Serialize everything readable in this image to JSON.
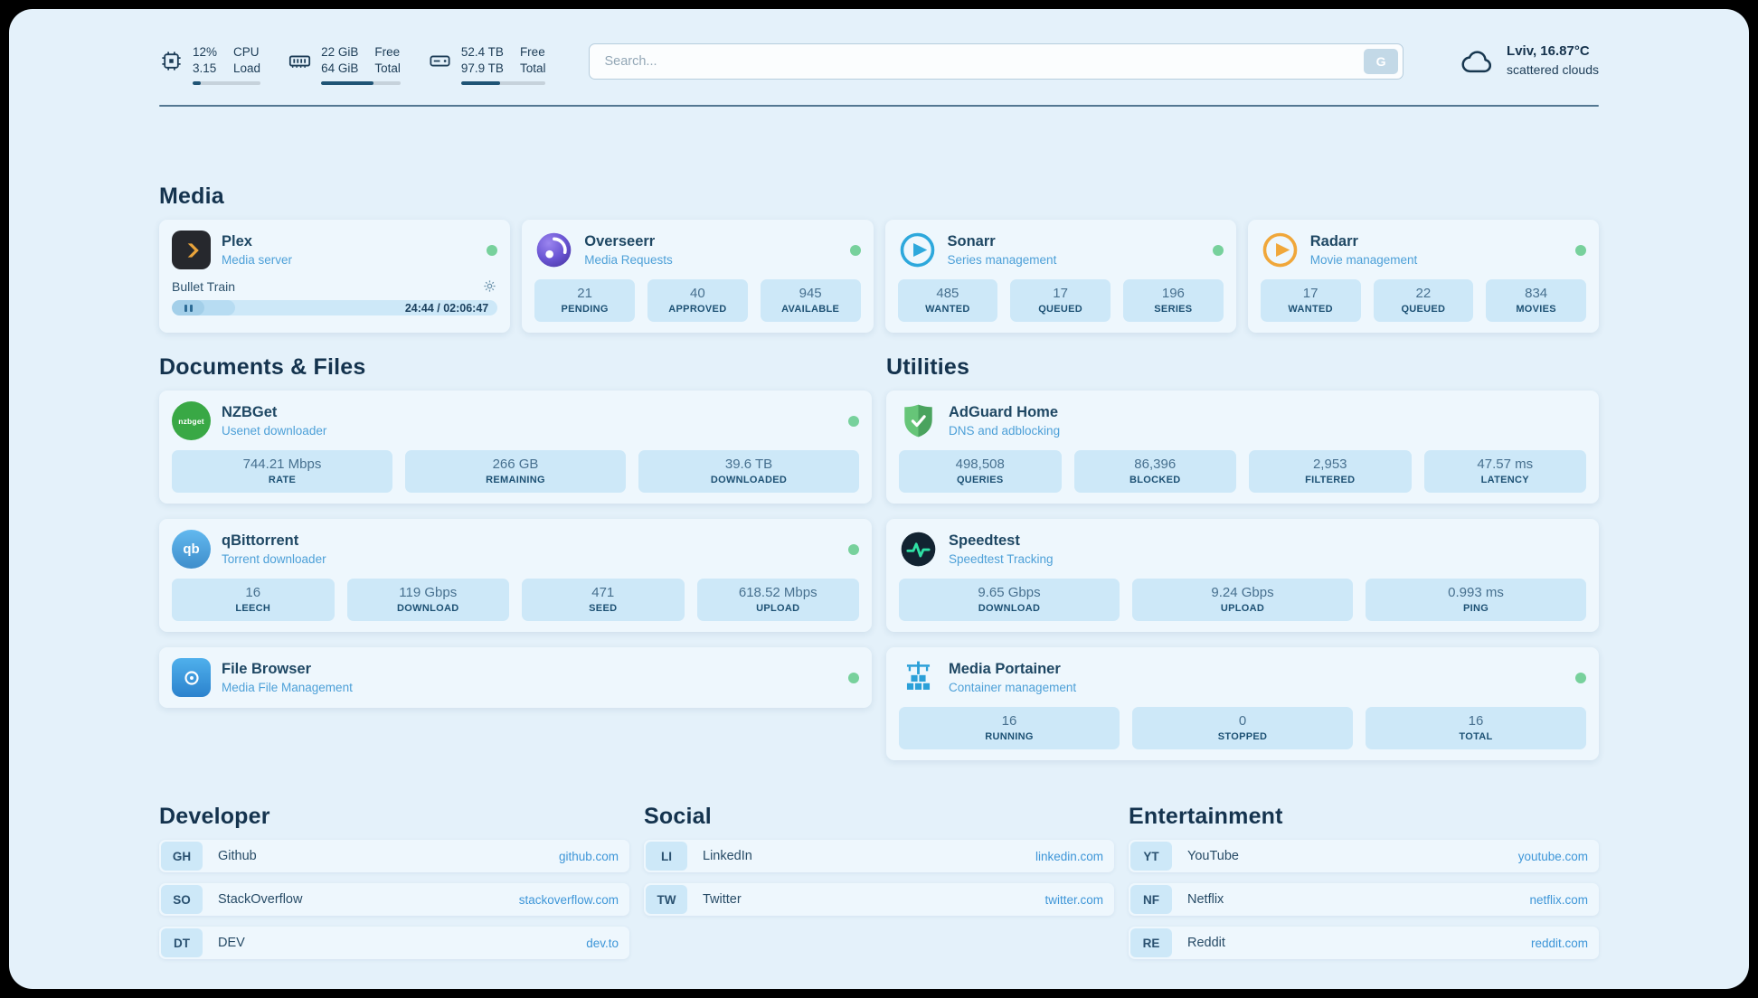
{
  "colors": {
    "page_background": "#e4f1fa",
    "card_background": "#eef7fd",
    "stat_box_background": "#cde8f8",
    "accent_blue": "#3e96d8",
    "heading_navy": "#14334e",
    "subtitle_blue": "#4da0d8",
    "status_online_green": "#77d19c",
    "progress_fill_navy": "#1f5475"
  },
  "header": {
    "metrics": [
      {
        "id": "cpu",
        "v1": "12%",
        "l1": "CPU",
        "v2": "3.15",
        "l2": "Load",
        "pct": 12
      },
      {
        "id": "memory",
        "v1": "22 GiB",
        "l1": "Free",
        "v2": "64 GiB",
        "l2": "Total",
        "pct": 66
      },
      {
        "id": "disk",
        "v1": "52.4 TB",
        "l1": "Free",
        "v2": "97.9 TB",
        "l2": "Total",
        "pct": 46
      }
    ],
    "search": {
      "placeholder": "Search...",
      "button_label": "G"
    },
    "weather": {
      "location": "Lviv, 16.87°C",
      "condition": "scattered clouds"
    }
  },
  "media": {
    "title": "Media",
    "plex": {
      "name": "Plex",
      "subtitle": "Media server",
      "now_playing": "Bullet Train",
      "time": "24:44 / 02:06:47",
      "progress_pct": 19.5
    },
    "overseerr": {
      "name": "Overseerr",
      "subtitle": "Media Requests",
      "stats": [
        {
          "value": "21",
          "label": "PENDING"
        },
        {
          "value": "40",
          "label": "APPROVED"
        },
        {
          "value": "945",
          "label": "AVAILABLE"
        }
      ]
    },
    "sonarr": {
      "name": "Sonarr",
      "subtitle": "Series management",
      "stats": [
        {
          "value": "485",
          "label": "WANTED"
        },
        {
          "value": "17",
          "label": "QUEUED"
        },
        {
          "value": "196",
          "label": "SERIES"
        }
      ]
    },
    "radarr": {
      "name": "Radarr",
      "subtitle": "Movie management",
      "stats": [
        {
          "value": "17",
          "label": "WANTED"
        },
        {
          "value": "22",
          "label": "QUEUED"
        },
        {
          "value": "834",
          "label": "MOVIES"
        }
      ]
    }
  },
  "documents": {
    "title": "Documents & Files",
    "nzbget": {
      "name": "NZBGet",
      "subtitle": "Usenet downloader",
      "icon_text": "nzbget",
      "stats": [
        {
          "value": "744.21 Mbps",
          "label": "RATE"
        },
        {
          "value": "266 GB",
          "label": "REMAINING"
        },
        {
          "value": "39.6 TB",
          "label": "DOWNLOADED"
        }
      ]
    },
    "qbittorrent": {
      "name": "qBittorrent",
      "subtitle": "Torrent downloader",
      "icon_text": "qb",
      "stats": [
        {
          "value": "16",
          "label": "LEECH"
        },
        {
          "value": "119 Gbps",
          "label": "DOWNLOAD"
        },
        {
          "value": "471",
          "label": "SEED"
        },
        {
          "value": "618.52 Mbps",
          "label": "UPLOAD"
        }
      ]
    },
    "filebrowser": {
      "name": "File Browser",
      "subtitle": "Media File Management"
    }
  },
  "utilities": {
    "title": "Utilities",
    "adguard": {
      "name": "AdGuard Home",
      "subtitle": "DNS and adblocking",
      "stats": [
        {
          "value": "498,508",
          "label": "QUERIES"
        },
        {
          "value": "86,396",
          "label": "BLOCKED"
        },
        {
          "value": "2,953",
          "label": "FILTERED"
        },
        {
          "value": "47.57 ms",
          "label": "LATENCY"
        }
      ]
    },
    "speedtest": {
      "name": "Speedtest",
      "subtitle": "Speedtest Tracking",
      "stats": [
        {
          "value": "9.65 Gbps",
          "label": "DOWNLOAD"
        },
        {
          "value": "9.24 Gbps",
          "label": "UPLOAD"
        },
        {
          "value": "0.993 ms",
          "label": "PING"
        }
      ]
    },
    "portainer": {
      "name": "Media Portainer",
      "subtitle": "Container management",
      "stats": [
        {
          "value": "16",
          "label": "RUNNING"
        },
        {
          "value": "0",
          "label": "STOPPED"
        },
        {
          "value": "16",
          "label": "TOTAL"
        }
      ]
    }
  },
  "bookmarks": {
    "developer": {
      "title": "Developer",
      "items": [
        {
          "abbr": "GH",
          "name": "Github",
          "url": "github.com"
        },
        {
          "abbr": "SO",
          "name": "StackOverflow",
          "url": "stackoverflow.com"
        },
        {
          "abbr": "DT",
          "name": "DEV",
          "url": "dev.to"
        }
      ]
    },
    "social": {
      "title": "Social",
      "items": [
        {
          "abbr": "LI",
          "name": "LinkedIn",
          "url": "linkedin.com"
        },
        {
          "abbr": "TW",
          "name": "Twitter",
          "url": "twitter.com"
        }
      ]
    },
    "entertainment": {
      "title": "Entertainment",
      "items": [
        {
          "abbr": "YT",
          "name": "YouTube",
          "url": "youtube.com"
        },
        {
          "abbr": "NF",
          "name": "Netflix",
          "url": "netflix.com"
        },
        {
          "abbr": "RE",
          "name": "Reddit",
          "url": "reddit.com"
        }
      ]
    }
  }
}
